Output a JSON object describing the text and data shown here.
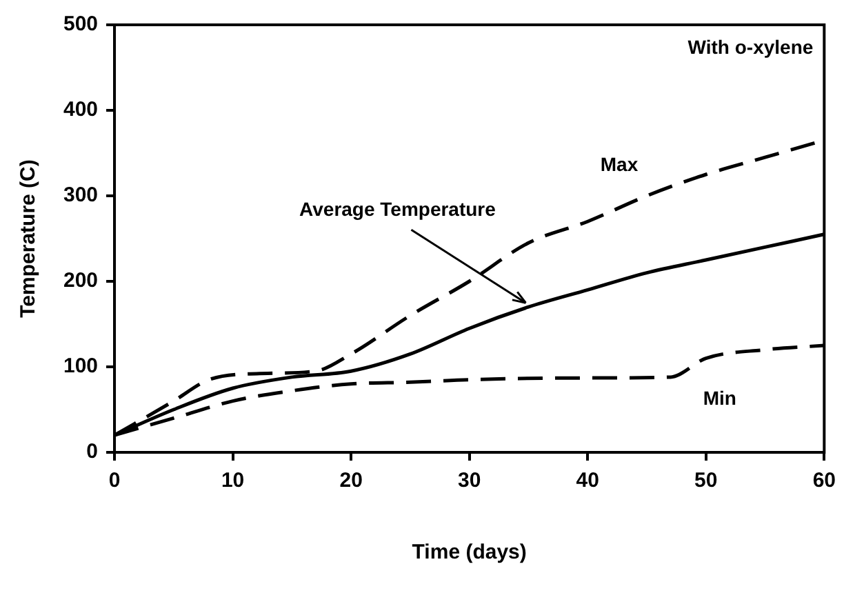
{
  "chart_data": {
    "type": "line",
    "xlabel": "Time (days)",
    "ylabel": "Temperature (C)",
    "xlim": [
      0,
      60
    ],
    "xticks": [
      0,
      10,
      20,
      30,
      40,
      50,
      60
    ],
    "ylim": [
      0,
      500
    ],
    "yticks": [
      0,
      100,
      200,
      300,
      400,
      500
    ],
    "grid": false,
    "legend": false,
    "marker": "none",
    "annotations": [
      "With o-xylene"
    ],
    "series": [
      {
        "name": "Max",
        "color": "#000000",
        "line_style": "dashed",
        "x": [
          0,
          5,
          8,
          12,
          17,
          20,
          25,
          30,
          35,
          40,
          45,
          50,
          55,
          60
        ],
        "values": [
          20,
          60,
          85,
          92,
          95,
          115,
          160,
          200,
          245,
          270,
          300,
          325,
          345,
          365
        ]
      },
      {
        "name": "Average Temperature",
        "color": "#000000",
        "line_style": "solid",
        "x": [
          0,
          5,
          10,
          15,
          20,
          25,
          30,
          35,
          40,
          45,
          50,
          55,
          60
        ],
        "values": [
          20,
          50,
          75,
          88,
          95,
          115,
          145,
          170,
          190,
          210,
          225,
          240,
          255
        ]
      },
      {
        "name": "Min",
        "color": "#000000",
        "line_style": "dashed",
        "x": [
          0,
          5,
          10,
          15,
          20,
          25,
          30,
          40,
          47,
          50,
          55,
          60
        ],
        "values": [
          20,
          40,
          60,
          72,
          80,
          82,
          85,
          87,
          88,
          110,
          120,
          125
        ]
      }
    ]
  }
}
